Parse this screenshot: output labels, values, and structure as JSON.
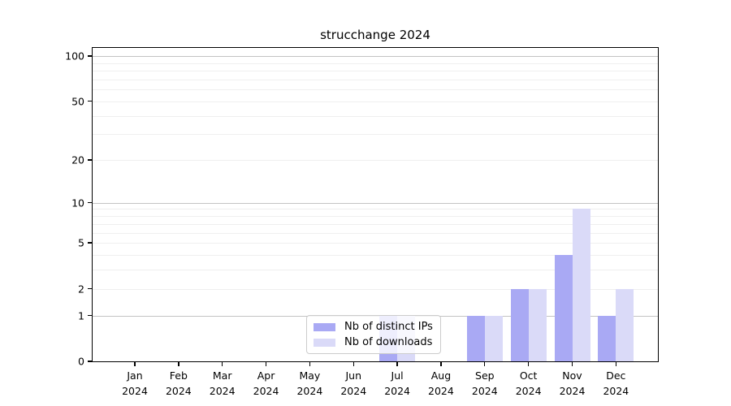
{
  "title": "strucchange 2024",
  "legend": {
    "items": [
      {
        "label": "Nb of distinct IPs",
        "color": "#a9a9f4"
      },
      {
        "label": "Nb of downloads",
        "color": "#dadaf8"
      }
    ]
  },
  "chart_data": {
    "type": "bar",
    "title": "strucchange 2024",
    "categories": [
      "Jan 2024",
      "Feb 2024",
      "Mar 2024",
      "Apr 2024",
      "May 2024",
      "Jun 2024",
      "Jul 2024",
      "Aug 2024",
      "Sep 2024",
      "Oct 2024",
      "Nov 2024",
      "Dec 2024"
    ],
    "series": [
      {
        "name": "Nb of distinct IPs",
        "color": "#a9a9f4",
        "values": [
          0,
          0,
          0,
          0,
          0,
          0,
          1,
          0,
          1,
          2,
          4,
          1
        ]
      },
      {
        "name": "Nb of downloads",
        "color": "#dadaf8",
        "values": [
          0,
          0,
          0,
          0,
          0,
          0,
          1,
          0,
          1,
          2,
          9,
          2
        ]
      }
    ],
    "yscale": "log1p",
    "ylim": [
      0,
      114
    ],
    "y_ticks": [
      0,
      1,
      2,
      5,
      10,
      20,
      50,
      100
    ],
    "y_major_gridlines": [
      1,
      10,
      100
    ],
    "y_minor_gridlines": [
      2,
      3,
      4,
      5,
      6,
      7,
      8,
      9,
      20,
      30,
      40,
      50,
      60,
      70,
      80,
      90
    ],
    "grid": true,
    "legend_position": "lower center",
    "xlabel": "",
    "ylabel": ""
  }
}
